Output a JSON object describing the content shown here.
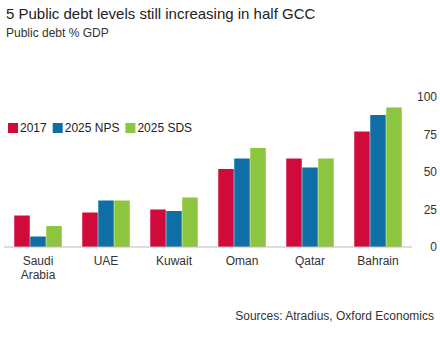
{
  "chart_data": {
    "type": "bar",
    "title": "5 Public debt levels still increasing in half GCC",
    "subtitle": "Public debt % GDP",
    "source": "Sources: Atradius, Oxford Economics",
    "categories": [
      "Saudi Arabia",
      "UAE",
      "Kuwait",
      "Oman",
      "Qatar",
      "Bahrain"
    ],
    "series": [
      {
        "name": "2017",
        "color": "#d10a3c",
        "values": [
          21,
          23,
          25,
          52,
          59,
          77
        ]
      },
      {
        "name": "2025 NPS",
        "color": "#0f6ea6",
        "values": [
          7,
          31,
          24,
          59,
          53,
          88
        ]
      },
      {
        "name": "2025 SDS",
        "color": "#8cc63e",
        "values": [
          14,
          31,
          33,
          66,
          59,
          93
        ]
      }
    ],
    "ylim": [
      0,
      100
    ],
    "yticks": [
      0,
      25,
      50,
      75,
      100
    ],
    "grid": false,
    "legend": "upper left"
  }
}
